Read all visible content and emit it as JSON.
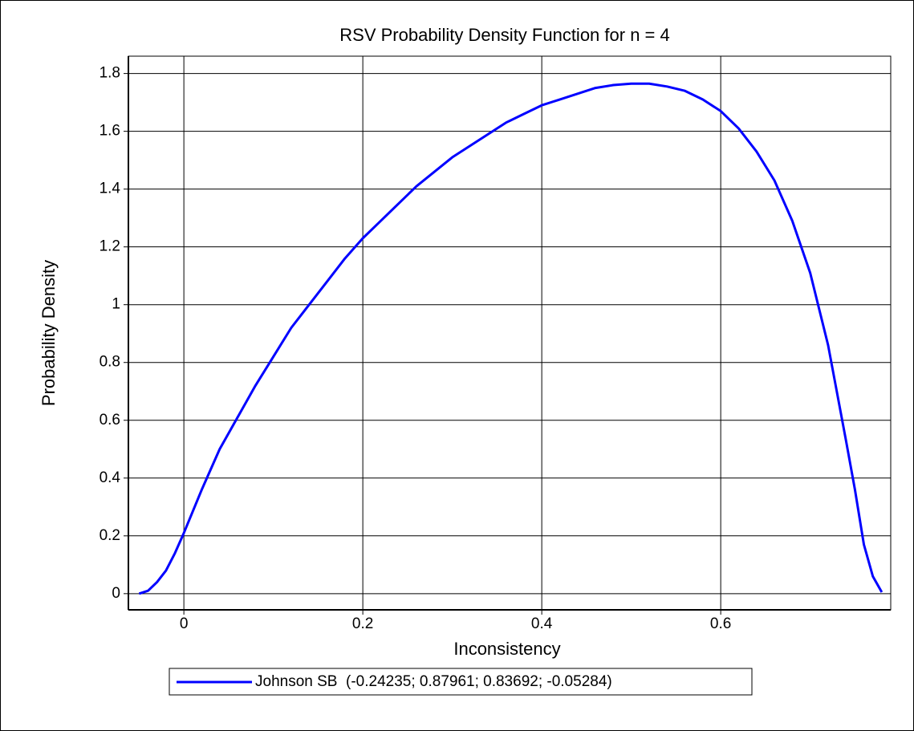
{
  "chart_data": {
    "type": "line",
    "title": "RSV Probability Density Function for n = 4",
    "x_label": "Inconsistency",
    "y_label": "Probability Density",
    "x": [
      -0.05,
      -0.04,
      -0.03,
      -0.02,
      -0.01,
      0,
      0.02,
      0.04,
      0.06,
      0.08,
      0.1,
      0.12,
      0.14,
      0.16,
      0.18,
      0.2,
      0.22,
      0.24,
      0.26,
      0.28,
      0.3,
      0.32,
      0.34,
      0.36,
      0.38,
      0.4,
      0.42,
      0.44,
      0.46,
      0.48,
      0.5,
      0.52,
      0.54,
      0.56,
      0.58,
      0.6,
      0.62,
      0.64,
      0.66,
      0.68,
      0.7,
      0.72,
      0.74,
      0.75,
      0.76,
      0.77,
      0.78
    ],
    "series": [
      {
        "name": "Johnson SB  (-0.24235; 0.87961; 0.83692; -0.05284)",
        "color": "#0000ff",
        "values": [
          0.0,
          0.01,
          0.04,
          0.08,
          0.14,
          0.21,
          0.36,
          0.5,
          0.61,
          0.72,
          0.82,
          0.92,
          1.0,
          1.08,
          1.16,
          1.23,
          1.29,
          1.35,
          1.41,
          1.46,
          1.51,
          1.55,
          1.59,
          1.63,
          1.66,
          1.69,
          1.71,
          1.73,
          1.75,
          1.76,
          1.765,
          1.765,
          1.755,
          1.74,
          1.71,
          1.67,
          1.61,
          1.53,
          1.43,
          1.29,
          1.11,
          0.86,
          0.53,
          0.36,
          0.17,
          0.06,
          0.005
        ]
      }
    ],
    "xlim": [
      -0.062,
      0.79
    ],
    "ylim": [
      -0.056,
      1.86
    ],
    "xticks": [
      0,
      0.2,
      0.4,
      0.6
    ],
    "yticks": [
      0,
      0.2,
      0.4,
      0.6,
      0.8,
      1,
      1.2,
      1.4,
      1.6,
      1.8
    ],
    "grid": true,
    "legend": "bottom"
  }
}
